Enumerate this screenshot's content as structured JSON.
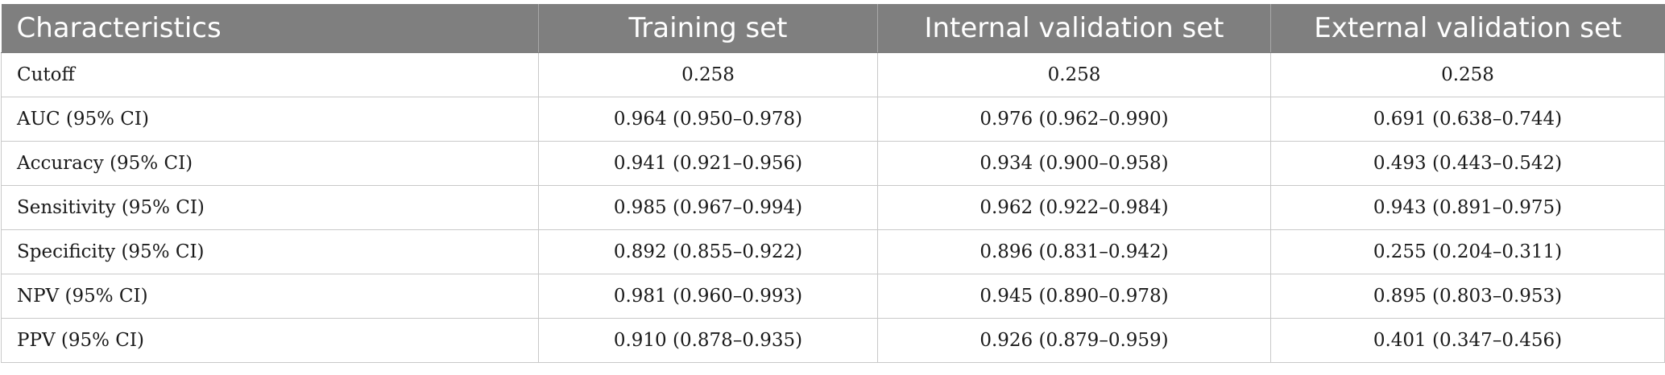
{
  "table": {
    "headers": [
      "Characteristics",
      "Training set",
      "Internal validation set",
      "External validation set"
    ],
    "rows": [
      {
        "label": "Cutoff",
        "training": "0.258",
        "internal": "0.258",
        "external": "0.258"
      },
      {
        "label": "AUC (95% CI)",
        "training": "0.964 (0.950–0.978)",
        "internal": "0.976 (0.962–0.990)",
        "external": "0.691 (0.638–0.744)"
      },
      {
        "label": "Accuracy (95% CI)",
        "training": "0.941 (0.921–0.956)",
        "internal": "0.934 (0.900–0.958)",
        "external": "0.493 (0.443–0.542)"
      },
      {
        "label": "Sensitivity (95% CI)",
        "training": "0.985 (0.967–0.994)",
        "internal": "0.962 (0.922–0.984)",
        "external": "0.943 (0.891–0.975)"
      },
      {
        "label": "Specificity (95% CI)",
        "training": "0.892 (0.855–0.922)",
        "internal": "0.896 (0.831–0.942)",
        "external": "0.255 (0.204–0.311)"
      },
      {
        "label": "NPV (95% CI)",
        "training": "0.981 (0.960–0.993)",
        "internal": "0.945 (0.890–0.978)",
        "external": "0.895 (0.803–0.953)"
      },
      {
        "label": "PPV (95% CI)",
        "training": "0.910 (0.878–0.935)",
        "internal": "0.926 (0.879–0.959)",
        "external": "0.401 (0.347–0.456)"
      }
    ]
  },
  "colors": {
    "header_background": "#7f7f7f",
    "header_text": "#ffffff",
    "grid_lines": "#c9c9c9",
    "body_text": "#1a1a1a"
  }
}
